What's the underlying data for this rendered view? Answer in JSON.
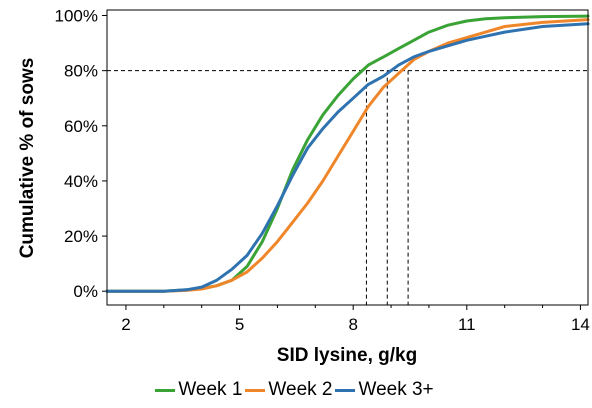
{
  "chart_data": {
    "type": "line",
    "title": "",
    "xlabel": "SID lysine, g/kg",
    "ylabel": "Cumulative % of sows",
    "xlim": [
      1.5,
      14.2
    ],
    "ylim": [
      -5,
      102
    ],
    "xticks": [
      2,
      5,
      8,
      11,
      14
    ],
    "xtick_labels": [
      "2",
      "5",
      "8",
      "11",
      "14"
    ],
    "yticks": [
      0,
      20,
      40,
      60,
      80,
      100
    ],
    "ytick_labels": [
      "0%",
      "20%",
      "40%",
      "60%",
      "80%",
      "100%"
    ],
    "grid": false,
    "legend_position": "bottom",
    "reference_line": {
      "y": 80,
      "x_values": [
        8.35,
        8.9,
        9.45
      ]
    },
    "series": [
      {
        "name": "Week 1",
        "color": "#3aa335",
        "x": [
          1.5,
          3,
          3.6,
          4,
          4.4,
          4.8,
          5.2,
          5.6,
          6,
          6.4,
          6.8,
          7.2,
          7.6,
          8,
          8.4,
          8.8,
          9.2,
          9.6,
          10,
          10.5,
          11,
          11.5,
          12,
          13,
          14.2
        ],
        "y": [
          0,
          0,
          0.5,
          1,
          2,
          4,
          9,
          18,
          30,
          44,
          55,
          64,
          71,
          77,
          82,
          85,
          88,
          91,
          94,
          96.5,
          98,
          98.8,
          99.2,
          99.6,
          99.8
        ]
      },
      {
        "name": "Week 2",
        "color": "#f0862a",
        "x": [
          1.5,
          3,
          3.6,
          4,
          4.4,
          4.8,
          5.2,
          5.6,
          6,
          6.4,
          6.8,
          7.2,
          7.6,
          8,
          8.4,
          8.8,
          9.2,
          9.6,
          10,
          10.5,
          11,
          11.5,
          12,
          13,
          14.2
        ],
        "y": [
          0,
          0,
          0.3,
          0.8,
          2,
          4,
          7,
          12,
          18,
          25,
          32,
          40,
          49,
          58,
          67,
          74,
          79,
          84,
          87,
          90,
          92,
          94,
          96,
          97.5,
          98.5
        ]
      },
      {
        "name": "Week 3+",
        "color": "#2f72b0",
        "x": [
          1.5,
          3,
          3.6,
          4,
          4.4,
          4.8,
          5.2,
          5.6,
          6,
          6.4,
          6.8,
          7.2,
          7.6,
          8,
          8.4,
          8.8,
          9.2,
          9.6,
          10,
          10.5,
          11,
          11.5,
          12,
          13,
          14.2
        ],
        "y": [
          0,
          0,
          0.5,
          1.5,
          4,
          8,
          13,
          21,
          31,
          42,
          52,
          59,
          65,
          70,
          75,
          78,
          82,
          85,
          87,
          89,
          91,
          92.5,
          94,
          96,
          97
        ]
      }
    ]
  }
}
